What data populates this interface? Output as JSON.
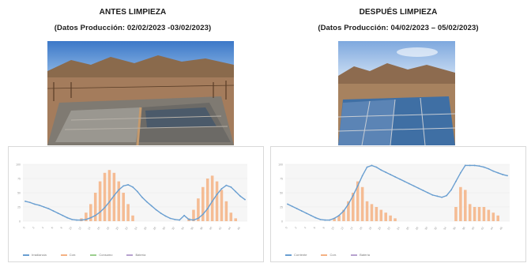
{
  "before": {
    "title": "ANTES LIMPIEZA",
    "subtitle": "(Datos Producción: 02/02/2023 -03/02/2023)"
  },
  "after": {
    "title": "DESPUÉS LIMPIEZA",
    "subtitle": "(Datos Producción: 04/02/2023 – 05/02/2023)"
  },
  "colors": {
    "line": "#6a9fd1",
    "bar": "#f4b183",
    "bar_light": "#f8cbad",
    "grid": "#eaeaea"
  },
  "chart_data": [
    {
      "type": "bar",
      "title": "",
      "xlabel": "",
      "ylabel": "",
      "ylim": [
        0,
        100
      ],
      "categories": [
        "0",
        "1",
        "2",
        "3",
        "4",
        "5",
        "6",
        "7",
        "8",
        "9",
        "10",
        "11",
        "12",
        "13",
        "14",
        "15",
        "16",
        "17",
        "18",
        "19",
        "20",
        "21",
        "22",
        "23",
        "24",
        "25",
        "26",
        "27",
        "28",
        "29",
        "30",
        "31",
        "32",
        "33",
        "34",
        "35",
        "36",
        "37",
        "38",
        "39",
        "40",
        "41",
        "42",
        "43",
        "44",
        "45",
        "46",
        "47"
      ],
      "series": [
        {
          "type": "bar",
          "values": [
            0,
            0,
            0,
            0,
            0,
            0,
            0,
            0,
            0,
            0,
            0,
            0,
            5,
            15,
            30,
            50,
            70,
            85,
            90,
            85,
            70,
            50,
            30,
            10,
            0,
            0,
            0,
            0,
            0,
            0,
            0,
            0,
            0,
            0,
            0,
            5,
            20,
            40,
            60,
            75,
            80,
            70,
            55,
            35,
            15,
            5,
            0,
            0
          ]
        },
        {
          "type": "line",
          "values": [
            35,
            33,
            30,
            28,
            25,
            22,
            18,
            14,
            10,
            6,
            3,
            2,
            2,
            3,
            6,
            10,
            16,
            24,
            34,
            45,
            55,
            62,
            64,
            60,
            52,
            42,
            34,
            27,
            20,
            14,
            9,
            5,
            3,
            2,
            10,
            3,
            2,
            5,
            12,
            22,
            35,
            47,
            57,
            63,
            60,
            52,
            44,
            38
          ]
        }
      ],
      "legend": [
        "Irradiancia",
        "Corr.",
        "Consumo",
        "Batería"
      ]
    },
    {
      "type": "bar",
      "title": "",
      "xlabel": "",
      "ylabel": "",
      "ylim": [
        0,
        100
      ],
      "categories": [
        "0",
        "1",
        "2",
        "3",
        "4",
        "5",
        "6",
        "7",
        "8",
        "9",
        "10",
        "11",
        "12",
        "13",
        "14",
        "15",
        "16",
        "17",
        "18",
        "19",
        "20",
        "21",
        "22",
        "23",
        "24",
        "25",
        "26",
        "27",
        "28",
        "29",
        "30",
        "31",
        "32",
        "33",
        "34",
        "35",
        "36",
        "37",
        "38",
        "39",
        "40",
        "41",
        "42",
        "43",
        "44",
        "45",
        "46",
        "47"
      ],
      "series": [
        {
          "type": "bar",
          "values": [
            0,
            0,
            0,
            0,
            0,
            0,
            0,
            0,
            0,
            0,
            5,
            10,
            20,
            35,
            50,
            70,
            60,
            35,
            30,
            25,
            20,
            15,
            10,
            5,
            0,
            0,
            0,
            0,
            0,
            0,
            0,
            0,
            0,
            0,
            0,
            0,
            25,
            60,
            55,
            30,
            25,
            25,
            25,
            20,
            15,
            10,
            0,
            0
          ]
        },
        {
          "type": "line",
          "values": [
            30,
            26,
            22,
            18,
            14,
            10,
            6,
            3,
            2,
            2,
            5,
            10,
            18,
            30,
            45,
            62,
            80,
            95,
            98,
            95,
            90,
            86,
            82,
            78,
            74,
            70,
            66,
            62,
            58,
            54,
            50,
            46,
            44,
            42,
            45,
            55,
            70,
            85,
            98,
            98,
            98,
            97,
            95,
            92,
            88,
            85,
            82,
            80
          ]
        }
      ],
      "legend": [
        "Corriente",
        "Corr.",
        "Batería"
      ]
    }
  ]
}
